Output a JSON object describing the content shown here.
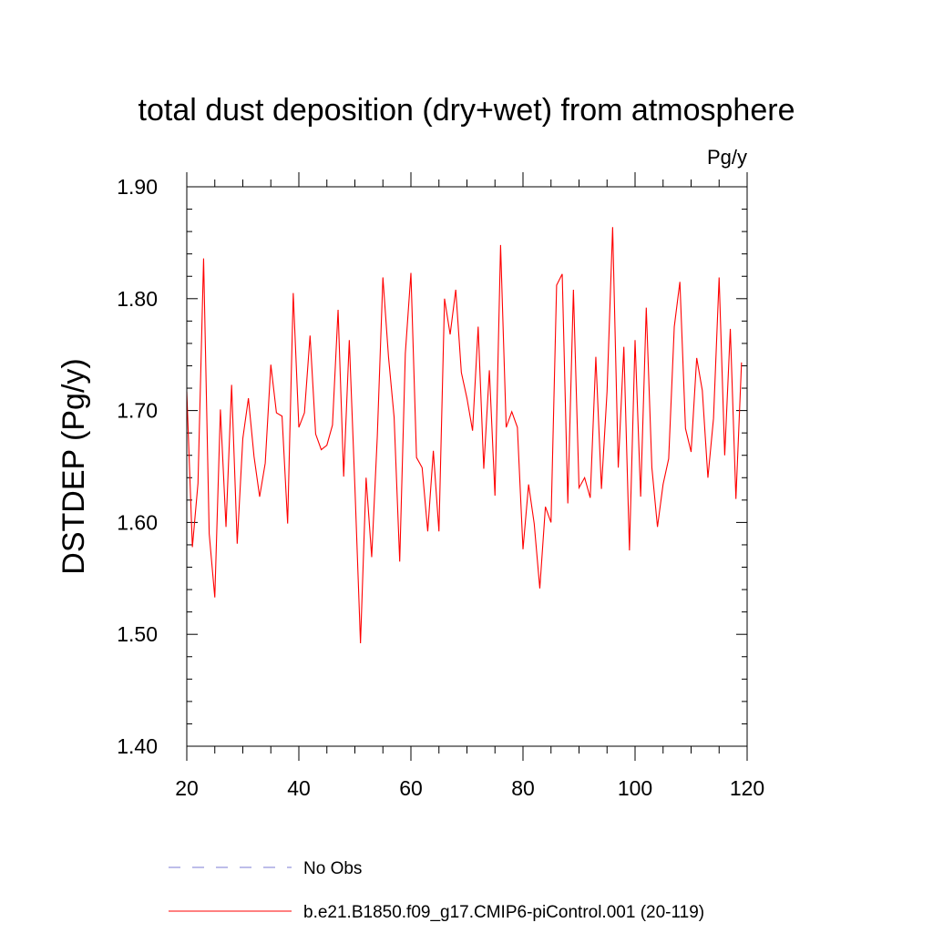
{
  "chart_data": {
    "type": "line",
    "title": "total dust deposition (dry+wet) from atmosphere",
    "units_label": "Pg/y",
    "xlabel": "",
    "ylabel": "DSTDEP  (Pg/y)",
    "xlim": [
      20,
      120
    ],
    "ylim": [
      1.4,
      1.9
    ],
    "x_ticks": [
      "20",
      "40",
      "60",
      "80",
      "100",
      "120"
    ],
    "y_ticks": [
      "1.40",
      "1.50",
      "1.60",
      "1.70",
      "1.80",
      "1.90"
    ],
    "grid": false,
    "legend_position": "bottom",
    "legend": [
      {
        "label": "No Obs",
        "style": "dashed",
        "color": "#7b7bd6"
      },
      {
        "label": "b.e21.B1850.f09_g17.CMIP6-piControl.001 (20-119)",
        "style": "solid",
        "color": "#ff0000"
      }
    ],
    "series": [
      {
        "name": "b.e21.B1850.f09_g17.CMIP6-piControl.001 (20-119)",
        "color": "#ff0000",
        "x_start": 20,
        "x_step": 1,
        "values": [
          1.717,
          1.578,
          1.635,
          1.836,
          1.59,
          1.533,
          1.701,
          1.596,
          1.723,
          1.581,
          1.675,
          1.711,
          1.659,
          1.623,
          1.653,
          1.741,
          1.698,
          1.695,
          1.599,
          1.805,
          1.685,
          1.698,
          1.767,
          1.679,
          1.665,
          1.669,
          1.687,
          1.79,
          1.641,
          1.763,
          1.632,
          1.492,
          1.64,
          1.569,
          1.677,
          1.819,
          1.748,
          1.694,
          1.565,
          1.751,
          1.823,
          1.658,
          1.649,
          1.592,
          1.664,
          1.592,
          1.8,
          1.768,
          1.808,
          1.734,
          1.711,
          1.682,
          1.775,
          1.648,
          1.736,
          1.624,
          1.848,
          1.685,
          1.699,
          1.685,
          1.576,
          1.634,
          1.599,
          1.541,
          1.614,
          1.6,
          1.812,
          1.822,
          1.617,
          1.808,
          1.631,
          1.64,
          1.622,
          1.748,
          1.63,
          1.717,
          1.864,
          1.649,
          1.757,
          1.575,
          1.763,
          1.623,
          1.792,
          1.649,
          1.596,
          1.634,
          1.657,
          1.775,
          1.815,
          1.684,
          1.663,
          1.747,
          1.718,
          1.64,
          1.693,
          1.819,
          1.66,
          1.773,
          1.621,
          1.743
        ]
      }
    ]
  }
}
